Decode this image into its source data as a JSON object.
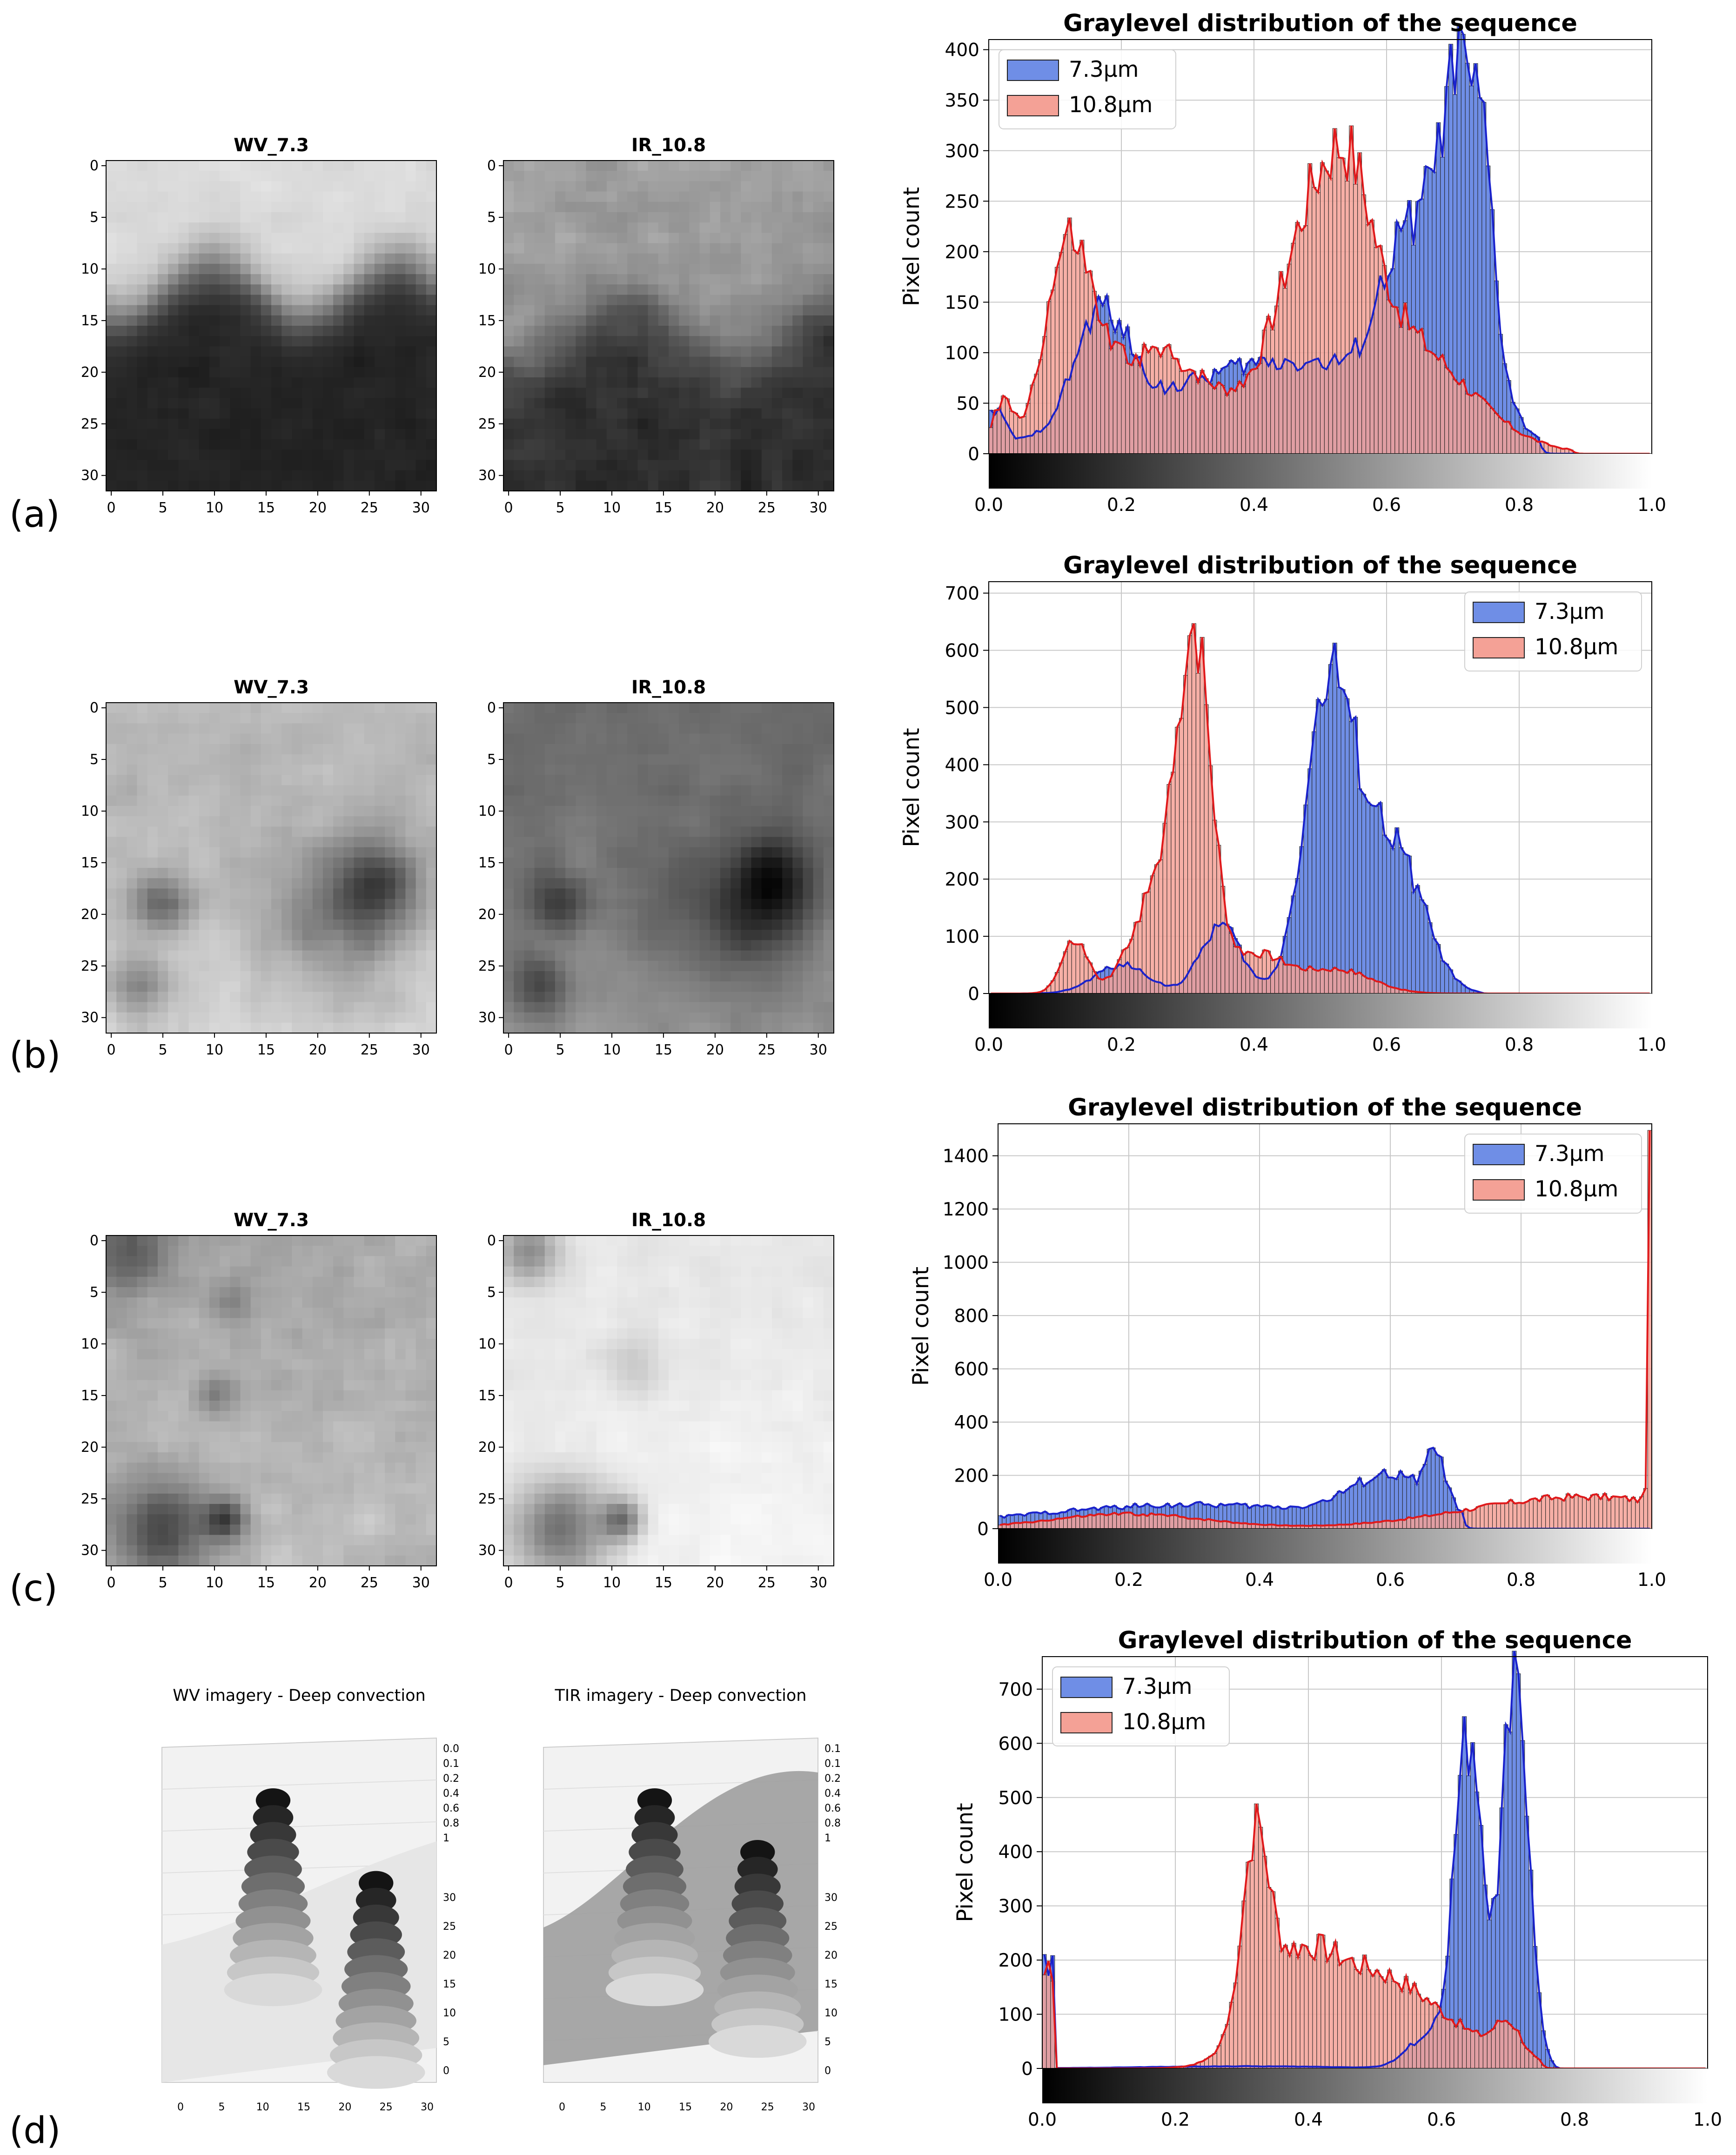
{
  "panel_letters": [
    "(a)",
    "(b)",
    "(c)",
    "(d)"
  ],
  "colors": {
    "blue_fill": "#6f8ee6",
    "blue_line": "#1a22cc",
    "red_fill": "#f4a196",
    "red_line": "#e0191b",
    "grid": "#c8c8c8"
  },
  "chart_data": [
    {
      "id": "a-wv",
      "type": "heatmap",
      "title": "WV_7.3",
      "x_ticks": [
        "0",
        "5",
        "10",
        "15",
        "20",
        "25",
        "30"
      ],
      "y_ticks": [
        "0",
        "5",
        "10",
        "15",
        "20",
        "25",
        "30"
      ],
      "grid_size": 32,
      "colormap": "gray",
      "pattern": {
        "v0": 0.86,
        "v1": 0.14,
        "bnd": 12,
        "bamp": 2.5,
        "bfreq": 0.35,
        "width": 3,
        "tex": 0.06
      }
    },
    {
      "id": "a-ir",
      "type": "heatmap",
      "title": "IR_10.8",
      "x_ticks": [
        "0",
        "5",
        "10",
        "15",
        "20",
        "25",
        "30"
      ],
      "y_ticks": [
        "0",
        "5",
        "10",
        "15",
        "20",
        "25",
        "30"
      ],
      "grid_size": 32,
      "colormap": "gray",
      "pattern": {
        "v0": 0.62,
        "v1": 0.18,
        "bnd": 16,
        "bamp": 3,
        "bfreq": 0.3,
        "width": 4,
        "tex": 0.12
      }
    },
    {
      "id": "a-hist",
      "type": "bar",
      "title": "Graylevel distribution of the sequence",
      "ylabel": "Pixel count",
      "xlim": [
        0,
        1
      ],
      "ylim": [
        0,
        410
      ],
      "x_ticks": [
        "0.0",
        "0.2",
        "0.4",
        "0.6",
        "0.8",
        "1.0"
      ],
      "y_ticks": [
        "0",
        "50",
        "100",
        "150",
        "200",
        "250",
        "300",
        "350",
        "400"
      ],
      "legend_position": "top-left",
      "series": [
        {
          "name": "7.3μm",
          "peaks": [
            [
              0.01,
              0.015,
              35
            ],
            [
              0.17,
              0.04,
              110
            ],
            [
              0.45,
              0.2,
              92
            ],
            [
              0.63,
              0.04,
              145
            ],
            [
              0.715,
              0.035,
              330
            ],
            [
              0.75,
              0.012,
              70
            ]
          ],
          "cutoff": 0.83
        },
        {
          "name": "10.8μm",
          "peaks": [
            [
              0.02,
              0.015,
              45
            ],
            [
              0.12,
              0.035,
              175
            ],
            [
              0.25,
              0.09,
              100
            ],
            [
              0.5,
              0.06,
              215
            ],
            [
              0.55,
              0.03,
              55
            ],
            [
              0.62,
              0.1,
              110
            ]
          ],
          "cutoff": 0.88
        }
      ]
    },
    {
      "id": "b-wv",
      "type": "heatmap",
      "title": "WV_7.3",
      "x_ticks": [
        "0",
        "5",
        "10",
        "15",
        "20",
        "25",
        "30"
      ],
      "y_ticks": [
        "0",
        "5",
        "10",
        "15",
        "20",
        "25",
        "30"
      ],
      "grid_size": 32,
      "colormap": "gray",
      "pattern": {
        "v0": 0.72,
        "v1": 0.82,
        "bnd": 18,
        "bamp": 4,
        "bfreq": 0.5,
        "width": 6,
        "tex": 0.08,
        "dark": [
          [
            5,
            19,
            3,
            0.38
          ],
          [
            22,
            20,
            7,
            0.32
          ],
          [
            26,
            17,
            4,
            0.3
          ],
          [
            3,
            27,
            3,
            0.3
          ]
        ]
      }
    },
    {
      "id": "b-ir",
      "type": "heatmap",
      "title": "IR_10.8",
      "x_ticks": [
        "0",
        "5",
        "10",
        "15",
        "20",
        "25",
        "30"
      ],
      "y_ticks": [
        "0",
        "5",
        "10",
        "15",
        "20",
        "25",
        "30"
      ],
      "grid_size": 32,
      "colormap": "gray",
      "pattern": {
        "v0": 0.42,
        "v1": 0.58,
        "bnd": 18,
        "bamp": 4,
        "bfreq": 0.5,
        "width": 8,
        "tex": 0.06,
        "dark": [
          [
            5,
            19,
            3,
            0.3
          ],
          [
            22,
            20,
            7,
            0.28
          ],
          [
            26,
            17,
            4,
            0.25
          ],
          [
            3,
            27,
            3,
            0.28
          ]
        ]
      }
    },
    {
      "id": "b-hist",
      "type": "bar",
      "title": "Graylevel distribution of the sequence",
      "ylabel": "Pixel count",
      "xlim": [
        0,
        1
      ],
      "ylim": [
        0,
        720
      ],
      "x_ticks": [
        "0.0",
        "0.2",
        "0.4",
        "0.6",
        "0.8",
        "1.0"
      ],
      "y_ticks": [
        "0",
        "100",
        "200",
        "300",
        "400",
        "500",
        "600",
        "700"
      ],
      "legend_position": "top-right",
      "series": [
        {
          "name": "7.3μm",
          "peaks": [
            [
              0.2,
              0.04,
              50
            ],
            [
              0.35,
              0.03,
              120
            ],
            [
              0.51,
              0.035,
              460
            ],
            [
              0.58,
              0.05,
              250
            ],
            [
              0.64,
              0.035,
              80
            ]
          ],
          "cutoff": 0.74
        },
        {
          "name": "10.8μm",
          "peaks": [
            [
              0.13,
              0.02,
              90
            ],
            [
              0.25,
              0.035,
              170
            ],
            [
              0.31,
              0.025,
              600
            ],
            [
              0.4,
              0.05,
              70
            ],
            [
              0.53,
              0.05,
              40
            ]
          ],
          "cutoff": 0.72
        }
      ]
    },
    {
      "id": "c-wv",
      "type": "heatmap",
      "title": "WV_7.3",
      "x_ticks": [
        "0",
        "5",
        "10",
        "15",
        "20",
        "25",
        "30"
      ],
      "y_ticks": [
        "0",
        "5",
        "10",
        "15",
        "20",
        "25",
        "30"
      ],
      "grid_size": 32,
      "colormap": "gray",
      "pattern": {
        "v0": 0.66,
        "v1": 0.74,
        "bnd": 16,
        "bamp": 3,
        "bfreq": 0.4,
        "width": 10,
        "tex": 0.1,
        "dark": [
          [
            2,
            1,
            4,
            0.3
          ],
          [
            12,
            6,
            2,
            0.18
          ],
          [
            10,
            15,
            2,
            0.22
          ],
          [
            5,
            28,
            5,
            0.45
          ],
          [
            11,
            27,
            2,
            0.4
          ]
        ]
      }
    },
    {
      "id": "c-ir",
      "type": "heatmap",
      "title": "IR_10.8",
      "x_ticks": [
        "0",
        "5",
        "10",
        "15",
        "20",
        "25",
        "30"
      ],
      "y_ticks": [
        "0",
        "5",
        "10",
        "15",
        "20",
        "25",
        "30"
      ],
      "grid_size": 32,
      "colormap": "gray",
      "pattern": {
        "v0": 0.9,
        "v1": 0.96,
        "bnd": 16,
        "bamp": 3,
        "bfreq": 0.4,
        "width": 10,
        "tex": 0.05,
        "dark": [
          [
            2,
            1,
            3,
            0.35
          ],
          [
            12,
            12,
            3,
            0.12
          ],
          [
            5,
            28,
            5,
            0.5
          ],
          [
            11,
            27,
            2,
            0.42
          ]
        ]
      }
    },
    {
      "id": "c-hist",
      "type": "bar",
      "title": "Graylevel distribution of the sequence",
      "ylabel": "Pixel count",
      "xlim": [
        0,
        1
      ],
      "ylim": [
        0,
        1520
      ],
      "x_ticks": [
        "0.0",
        "0.2",
        "0.4",
        "0.6",
        "0.8",
        "1.0"
      ],
      "y_ticks": [
        "0",
        "200",
        "400",
        "600",
        "800",
        "1000",
        "1200",
        "1400"
      ],
      "legend_position": "top-right",
      "series": [
        {
          "name": "7.3μm",
          "peaks": [
            [
              0.3,
              0.25,
              90
            ],
            [
              0.6,
              0.06,
              160
            ],
            [
              0.67,
              0.015,
              180
            ]
          ],
          "cutoff": 0.71
        },
        {
          "name": "10.8μm",
          "peaks": [
            [
              0.2,
              0.12,
              55
            ],
            [
              0.9,
              0.18,
              120
            ],
            [
              0.998,
              0.003,
              1330
            ]
          ],
          "cutoff": 1.0
        }
      ]
    },
    {
      "id": "d-wv-3d",
      "type": "surface3d",
      "title": "WV imagery - Deep convection",
      "z_ticks": [
        "0.0",
        "0.1",
        "0.2",
        "0.4",
        "0.6",
        "0.8",
        "1"
      ],
      "y_ticks": [
        "30",
        "25",
        "20",
        "15",
        "10",
        "5",
        "0"
      ],
      "x_ticks": [
        "0",
        "5",
        "10",
        "15",
        "20",
        "25",
        "30"
      ],
      "peaks": [
        [
          0.27,
          0.9
        ],
        [
          0.52,
          0.66
        ]
      ],
      "background": "light"
    },
    {
      "id": "d-tir-3d",
      "type": "surface3d",
      "title": "TIR imagery - Deep convection",
      "z_ticks": [
        "0.1",
        "0.1",
        "0.2",
        "0.4",
        "0.6",
        "0.8",
        "1"
      ],
      "y_ticks": [
        "30",
        "25",
        "20",
        "15",
        "10",
        "5",
        "0"
      ],
      "x_ticks": [
        "0",
        "5",
        "10",
        "15",
        "20",
        "25",
        "30"
      ],
      "peaks": [
        [
          0.27,
          0.9
        ],
        [
          0.52,
          0.75
        ]
      ],
      "background": "gray"
    },
    {
      "id": "d-hist",
      "type": "bar",
      "title": "Graylevel distribution of the sequence",
      "ylabel": "Pixel count",
      "xlim": [
        0,
        1
      ],
      "ylim": [
        0,
        760
      ],
      "x_ticks": [
        "0.0",
        "0.2",
        "0.4",
        "0.6",
        "0.8",
        "1.0"
      ],
      "y_ticks": [
        "0",
        "100",
        "200",
        "300",
        "400",
        "500",
        "600",
        "700"
      ],
      "legend_position": "top-left",
      "series": [
        {
          "name": "7.3μm",
          "spike": [
            0.01,
            190
          ],
          "peaks": [
            [
              0.3,
              0.15,
              4
            ],
            [
              0.64,
              0.02,
              600
            ],
            [
              0.71,
              0.02,
              700
            ],
            [
              0.58,
              0.03,
              60
            ]
          ],
          "cutoff": 0.77
        },
        {
          "name": "10.8μm",
          "spike": [
            0.01,
            180
          ],
          "peaks": [
            [
              0.32,
              0.02,
              330
            ],
            [
              0.38,
              0.06,
              190
            ],
            [
              0.5,
              0.07,
              130
            ],
            [
              0.7,
              0.02,
              60
            ],
            [
              0.6,
              0.08,
              60
            ]
          ],
          "cutoff": 0.75
        }
      ]
    }
  ]
}
